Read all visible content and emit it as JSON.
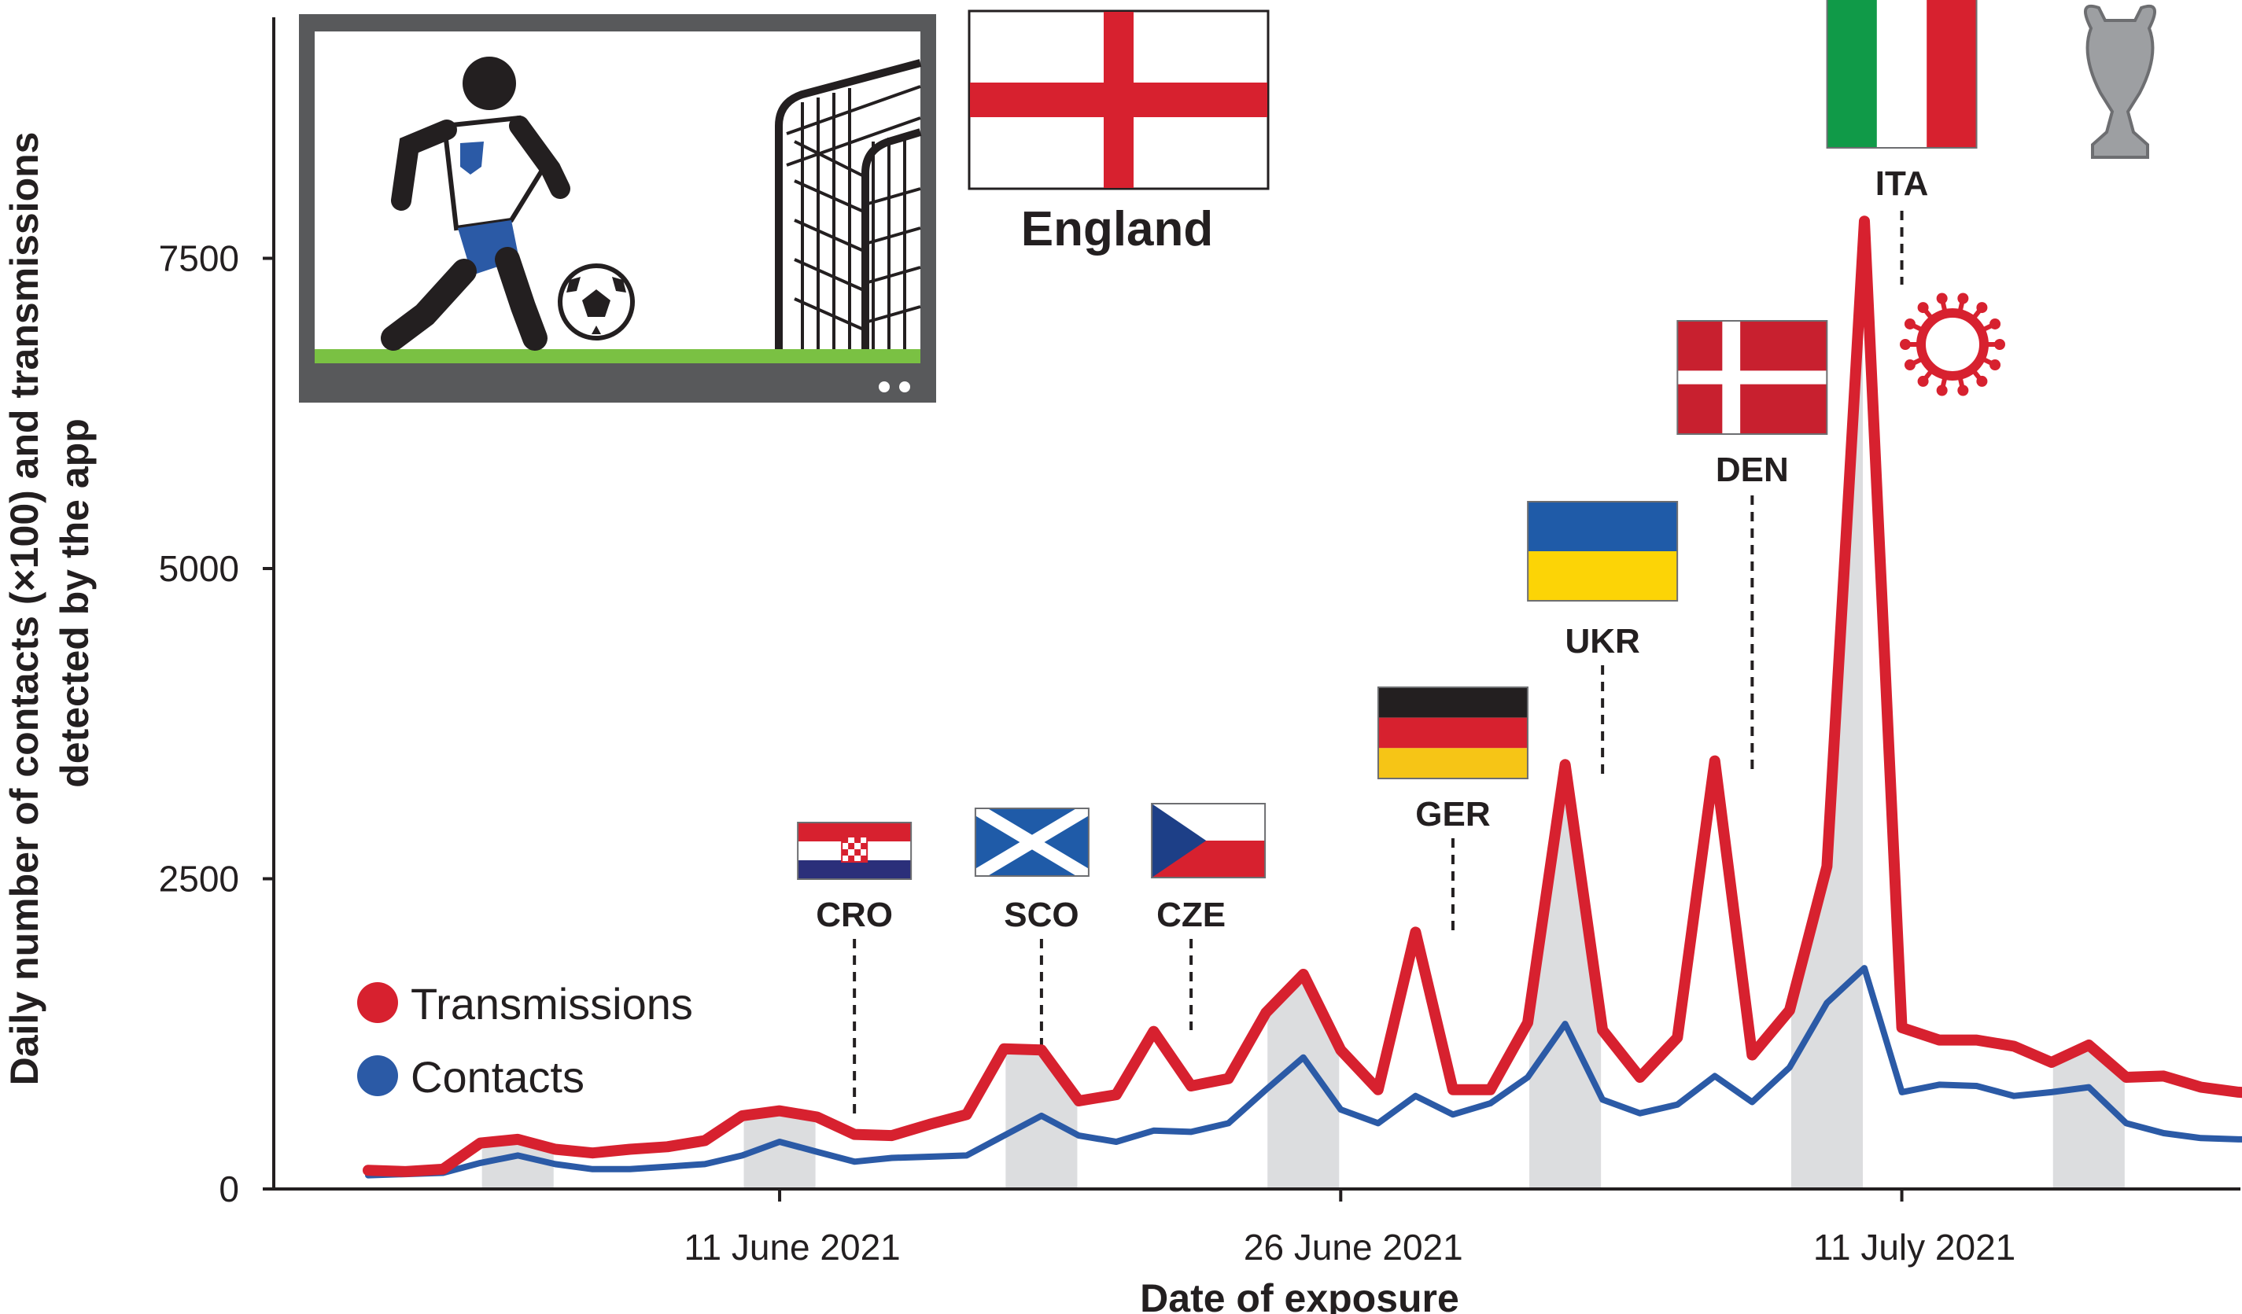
{
  "chart_data": {
    "type": "line",
    "xlabel": "Date of exposure",
    "ylabel": "Daily number of contacts (×100) and transmissions detected by the app",
    "ylim": [
      0,
      10000
    ],
    "yticks": [
      0,
      2500,
      5000,
      7500
    ],
    "ytick_labels": [
      "0",
      "2500",
      "5000",
      "7500"
    ],
    "xticks": [
      {
        "date": "2021-06-11",
        "label": "11 June 2021"
      },
      {
        "date": "2021-06-26",
        "label": "26 June 2021"
      },
      {
        "date": "2021-07-11",
        "label": "11 July 2021"
      }
    ],
    "x": [
      "2021-05-31",
      "2021-06-01",
      "2021-06-02",
      "2021-06-03",
      "2021-06-04",
      "2021-06-05",
      "2021-06-06",
      "2021-06-07",
      "2021-06-08",
      "2021-06-09",
      "2021-06-10",
      "2021-06-11",
      "2021-06-12",
      "2021-06-13",
      "2021-06-14",
      "2021-06-15",
      "2021-06-16",
      "2021-06-17",
      "2021-06-18",
      "2021-06-19",
      "2021-06-20",
      "2021-06-21",
      "2021-06-22",
      "2021-06-23",
      "2021-06-24",
      "2021-06-25",
      "2021-06-26",
      "2021-06-27",
      "2021-06-28",
      "2021-06-29",
      "2021-06-30",
      "2021-07-01",
      "2021-07-02",
      "2021-07-03",
      "2021-07-04",
      "2021-07-05",
      "2021-07-06",
      "2021-07-07",
      "2021-07-08",
      "2021-07-09",
      "2021-07-10",
      "2021-07-11",
      "2021-07-12",
      "2021-07-13",
      "2021-07-14",
      "2021-07-15",
      "2021-07-16",
      "2021-07-17",
      "2021-07-18",
      "2021-07-19",
      "2021-07-20",
      "2021-07-21"
    ],
    "series": [
      {
        "name": "Transmissions",
        "color": "#d7212f",
        "values": [
          150,
          140,
          160,
          370,
          400,
          320,
          290,
          320,
          340,
          390,
          590,
          630,
          580,
          440,
          430,
          520,
          600,
          1130,
          1120,
          710,
          760,
          1270,
          830,
          890,
          1420,
          1730,
          1120,
          800,
          2070,
          800,
          800,
          1340,
          3420,
          1280,
          900,
          1220,
          3450,
          1080,
          1440,
          2600,
          7800,
          1300,
          1200,
          1200,
          1150,
          1020,
          1160,
          900,
          910,
          820,
          780,
          760
        ]
      },
      {
        "name": "Contacts",
        "color": "#2b5aa6",
        "values": [
          110,
          120,
          130,
          210,
          270,
          200,
          160,
          160,
          180,
          200,
          270,
          380,
          300,
          220,
          250,
          260,
          270,
          430,
          590,
          430,
          380,
          470,
          460,
          530,
          800,
          1060,
          640,
          530,
          750,
          600,
          690,
          900,
          1330,
          720,
          610,
          680,
          910,
          700,
          980,
          1500,
          1780,
          780,
          840,
          830,
          750,
          780,
          820,
          530,
          450,
          410,
          400,
          400
        ]
      }
    ],
    "match_days": [
      {
        "date": "2021-06-13",
        "label": "CRO"
      },
      {
        "date": "2021-06-18",
        "label": "SCO"
      },
      {
        "date": "2021-06-22",
        "label": "CZE"
      },
      {
        "date": "2021-06-29",
        "label": "GER"
      },
      {
        "date": "2021-07-03",
        "label": "UKR"
      },
      {
        "date": "2021-07-07",
        "label": "DEN"
      },
      {
        "date": "2021-07-11",
        "label": "ITA"
      }
    ],
    "shaded_periods": [
      [
        "2021-06-03",
        "2021-06-05"
      ],
      [
        "2021-06-10",
        "2021-06-12"
      ],
      [
        "2021-06-17",
        "2021-06-19"
      ],
      [
        "2021-06-24",
        "2021-06-26"
      ],
      [
        "2021-07-01",
        "2021-07-03"
      ],
      [
        "2021-07-08",
        "2021-07-10"
      ],
      [
        "2021-07-15",
        "2021-07-17"
      ]
    ],
    "legend": "bottom-left",
    "grid": false
  },
  "title_box": {
    "label": "England"
  },
  "colors": {
    "transmissions": "#d7212f",
    "contacts": "#2b5aa6",
    "shade": "#dcdddf",
    "axis": "#231f20",
    "tv_frame": "#58595b",
    "grass": "#7ac143"
  },
  "icons": [
    "tv-football-icon",
    "england-flag-icon",
    "trophy-icon",
    "virus-icon",
    "croatia-flag-icon",
    "scotland-flag-icon",
    "czech-flag-icon",
    "germany-flag-icon",
    "ukraine-flag-icon",
    "denmark-flag-icon",
    "italy-flag-icon"
  ]
}
